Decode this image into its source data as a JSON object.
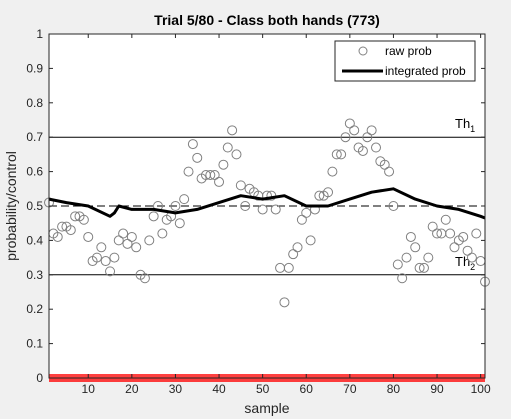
{
  "chart_data": {
    "type": "scatter",
    "title": "Trial 5/80 - Class both hands (773)",
    "xlabel": "sample",
    "ylabel": "probability/control",
    "xlim": [
      1,
      101
    ],
    "ylim": [
      0,
      1
    ],
    "xticks": [
      10,
      20,
      30,
      40,
      50,
      60,
      70,
      80,
      90,
      100
    ],
    "yticks": [
      0,
      0.1,
      0.2,
      0.3,
      0.4,
      0.5,
      0.6,
      0.7,
      0.8,
      0.9,
      1
    ],
    "grid": false,
    "legend": {
      "placement": "top-right",
      "entries": [
        "raw prob",
        "integrated prob"
      ]
    },
    "thresholds": [
      {
        "label": "Th",
        "subscript": "1",
        "value": 0.7
      },
      {
        "label": "Th",
        "subscript": "2",
        "value": 0.3
      }
    ],
    "reference_line": {
      "value": 0.5,
      "style": "dashed"
    },
    "baseline_bar": {
      "value": 0,
      "color": "#ff0000"
    },
    "series": [
      {
        "name": "raw prob",
        "style": "markers",
        "color": "#808080",
        "x": [
          1,
          2,
          3,
          4,
          5,
          6,
          7,
          8,
          9,
          10,
          11,
          12,
          13,
          14,
          15,
          16,
          17,
          18,
          19,
          20,
          21,
          22,
          23,
          24,
          25,
          26,
          27,
          28,
          29,
          30,
          31,
          32,
          33,
          34,
          35,
          36,
          37,
          38,
          39,
          40,
          41,
          42,
          43,
          44,
          45,
          46,
          47,
          48,
          49,
          50,
          51,
          52,
          53,
          54,
          55,
          56,
          57,
          58,
          59,
          60,
          61,
          62,
          63,
          64,
          65,
          66,
          67,
          68,
          69,
          70,
          71,
          72,
          73,
          74,
          75,
          76,
          77,
          78,
          79,
          80,
          81,
          82,
          83,
          84,
          85,
          86,
          87,
          88,
          89,
          90,
          91,
          92,
          93,
          94,
          95,
          96,
          97,
          98,
          99,
          100,
          101
        ],
        "y": [
          0.51,
          0.42,
          0.41,
          0.44,
          0.44,
          0.43,
          0.47,
          0.47,
          0.46,
          0.41,
          0.34,
          0.35,
          0.38,
          0.34,
          0.31,
          0.35,
          0.4,
          0.42,
          0.39,
          0.41,
          0.38,
          0.3,
          0.29,
          0.4,
          0.47,
          0.5,
          0.42,
          0.46,
          0.47,
          0.5,
          0.45,
          0.52,
          0.6,
          0.68,
          0.64,
          0.58,
          0.59,
          0.59,
          0.59,
          0.57,
          0.62,
          0.67,
          0.72,
          0.65,
          0.56,
          0.5,
          0.55,
          0.54,
          0.53,
          0.49,
          0.53,
          0.53,
          0.49,
          0.32,
          0.22,
          0.32,
          0.36,
          0.38,
          0.46,
          0.48,
          0.4,
          0.49,
          0.53,
          0.53,
          0.54,
          0.6,
          0.65,
          0.65,
          0.7,
          0.74,
          0.72,
          0.67,
          0.66,
          0.7,
          0.72,
          0.67,
          0.63,
          0.62,
          0.6,
          0.5,
          0.33,
          0.29,
          0.35,
          0.41,
          0.38,
          0.32,
          0.32,
          0.35,
          0.44,
          0.42,
          0.42,
          0.46,
          0.42,
          0.38,
          0.4,
          0.41,
          0.37,
          0.35,
          0.42,
          0.34,
          0.28
        ]
      },
      {
        "name": "integrated prob",
        "style": "line",
        "color": "#000000",
        "x": [
          1,
          5,
          10,
          15,
          16,
          17,
          20,
          25,
          30,
          35,
          40,
          45,
          50,
          55,
          60,
          65,
          70,
          75,
          80,
          85,
          90,
          95,
          100,
          101
        ],
        "y": [
          0.52,
          0.51,
          0.5,
          0.47,
          0.48,
          0.5,
          0.49,
          0.49,
          0.48,
          0.49,
          0.51,
          0.53,
          0.52,
          0.53,
          0.5,
          0.5,
          0.52,
          0.54,
          0.55,
          0.52,
          0.5,
          0.49,
          0.47,
          0.465
        ]
      }
    ]
  }
}
